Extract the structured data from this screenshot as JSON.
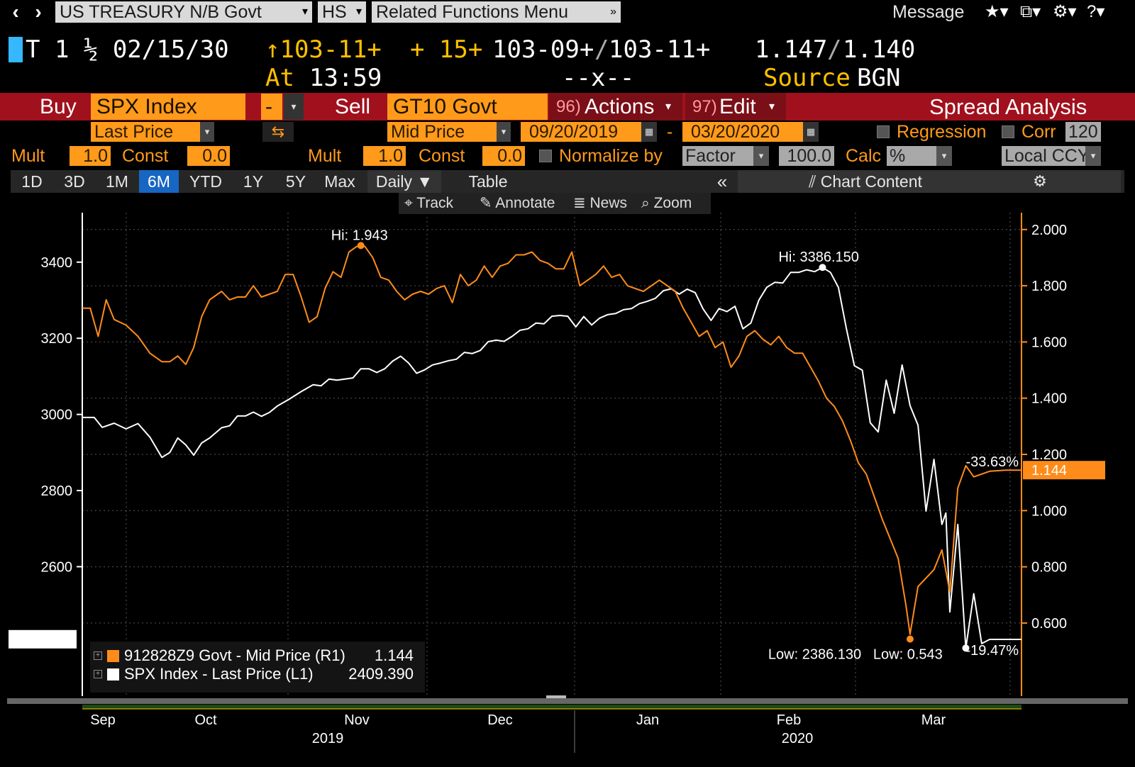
{
  "topbar": {
    "security": "US TREASURY N/B Govt",
    "function": "HS",
    "related": "Related Functions  Menu",
    "message": "Message"
  },
  "security_line": {
    "ticker": "T 1 ½ 02/15/30",
    "last_price": "↑103-11+",
    "change": "+ 15+",
    "bid": "103-09+",
    "ask": "103-11+",
    "yield_bid": "1.147",
    "yield_ask": "1.140",
    "at_label": "At",
    "time": "13:59",
    "size": "--x--",
    "source_label": "Source",
    "source": "BGN"
  },
  "spread_bar": {
    "buy_label": "Buy",
    "buy_security": "SPX Index",
    "op": "-",
    "sell_label": "Sell",
    "sell_security": "GT10 Govt",
    "actions_num": "96)",
    "actions": "Actions",
    "edit_num": "97)",
    "edit": "Edit",
    "title": "Spread Analysis"
  },
  "fields": {
    "buy_field": "Last Price",
    "sell_field": "Mid Price",
    "start_date": "09/20/2019",
    "end_date": "03/20/2020",
    "regression": "Regression",
    "corr": "Corr",
    "corr_value": "120",
    "mult_label": "Mult",
    "const_label": "Const",
    "mult1": "1.0",
    "const1": "0.0",
    "mult2": "1.0",
    "const2": "0.0",
    "normalize": "Normalize by",
    "normalize_mode": "Factor",
    "normalize_value": "100.0",
    "calc": "Calc",
    "calc_value": "%",
    "ccy": "Local CCY"
  },
  "tabs": [
    "1D",
    "3D",
    "1M",
    "6M",
    "YTD",
    "1Y",
    "5Y",
    "Max"
  ],
  "tabs_active": "6M",
  "frequency": "Daily",
  "table_label": "Table",
  "chart_content": "Chart Content",
  "tools": {
    "track": "Track",
    "annotate": "Annotate",
    "news": "News",
    "zoom": "Zoom"
  },
  "colors": {
    "orange": "#ff8c1a",
    "white": "#ffffff",
    "red_bar": "#a0111d",
    "tab_active": "#1766c2"
  },
  "legend": [
    {
      "name": "912828Z9 Govt - Mid Price (R1)",
      "value": "1.144",
      "color": "#ff8c1a"
    },
    {
      "name": "SPX Index - Last Price (L1)",
      "value": "2409.390",
      "color": "#ffffff"
    }
  ],
  "chart_data": {
    "type": "line",
    "x_labels": [
      "Sep",
      "Oct",
      "Nov",
      "Dec",
      "Jan",
      "Feb",
      "Mar"
    ],
    "x_years": [
      "2019",
      "2020"
    ],
    "left_axis": {
      "ticks": [
        "3400",
        "3200",
        "3000",
        "2800",
        "2600"
      ],
      "ylim": [
        2260,
        3530
      ]
    },
    "right_axis": {
      "ticks": [
        "2.000",
        "1.800",
        "1.600",
        "1.400",
        "1.200",
        "1.000",
        "0.800",
        "0.600"
      ],
      "ylim": [
        0.34,
        2.06
      ]
    },
    "annotations": {
      "spx_hi": "Hi: 3386.150",
      "spx_low": "Low: 2386.130",
      "yield_hi": "Hi: 1.943",
      "yield_low": "Low: 0.543",
      "yield_change": "-33.63%",
      "spx_change": "-19.47%",
      "yield_last": "1.144",
      "spx_last": "2409.390"
    },
    "series": [
      {
        "name": "SPX Index - Last Price (L1)",
        "axis": "left",
        "color": "#ffffff",
        "values": [
          [
            0,
            2992
          ],
          [
            3,
            2992
          ],
          [
            5,
            2966
          ],
          [
            8,
            2977
          ],
          [
            11,
            2962
          ],
          [
            14,
            2976
          ],
          [
            17,
            2940
          ],
          [
            20,
            2887
          ],
          [
            22,
            2900
          ],
          [
            24,
            2938
          ],
          [
            26,
            2920
          ],
          [
            28,
            2893
          ],
          [
            30,
            2925
          ],
          [
            32,
            2938
          ],
          [
            35,
            2965
          ],
          [
            37,
            2970
          ],
          [
            39,
            2996
          ],
          [
            41,
            2996
          ],
          [
            43,
            3006
          ],
          [
            45,
            2995
          ],
          [
            47,
            3005
          ],
          [
            49,
            3022
          ],
          [
            52,
            3040
          ],
          [
            55,
            3060
          ],
          [
            58,
            3078
          ],
          [
            60,
            3075
          ],
          [
            62,
            3093
          ],
          [
            64,
            3090
          ],
          [
            66,
            3093
          ],
          [
            68,
            3096
          ],
          [
            70,
            3120
          ],
          [
            72,
            3120
          ],
          [
            74,
            3110
          ],
          [
            76,
            3120
          ],
          [
            78,
            3140
          ],
          [
            80,
            3153
          ],
          [
            82,
            3135
          ],
          [
            84,
            3108
          ],
          [
            86,
            3117
          ],
          [
            88,
            3130
          ],
          [
            90,
            3135
          ],
          [
            92,
            3141
          ],
          [
            94,
            3145
          ],
          [
            96,
            3163
          ],
          [
            98,
            3160
          ],
          [
            100,
            3168
          ],
          [
            102,
            3191
          ],
          [
            104,
            3195
          ],
          [
            106,
            3192
          ],
          [
            108,
            3205
          ],
          [
            110,
            3221
          ],
          [
            112,
            3225
          ],
          [
            114,
            3240
          ],
          [
            116,
            3238
          ],
          [
            118,
            3258
          ],
          [
            120,
            3260
          ],
          [
            122,
            3258
          ],
          [
            124,
            3230
          ],
          [
            126,
            3257
          ],
          [
            128,
            3235
          ],
          [
            130,
            3253
          ],
          [
            132,
            3262
          ],
          [
            134,
            3265
          ],
          [
            136,
            3275
          ],
          [
            138,
            3278
          ],
          [
            140,
            3291
          ],
          [
            142,
            3297
          ],
          [
            144,
            3305
          ],
          [
            146,
            3325
          ],
          [
            148,
            3330
          ],
          [
            150,
            3316
          ],
          [
            152,
            3329
          ],
          [
            154,
            3320
          ],
          [
            156,
            3277
          ],
          [
            158,
            3247
          ],
          [
            160,
            3278
          ],
          [
            162,
            3270
          ],
          [
            164,
            3284
          ],
          [
            166,
            3225
          ],
          [
            168,
            3240
          ],
          [
            170,
            3300
          ],
          [
            172,
            3334
          ],
          [
            174,
            3347
          ],
          [
            176,
            3345
          ],
          [
            178,
            3373
          ],
          [
            180,
            3373
          ],
          [
            182,
            3380
          ],
          [
            184,
            3375
          ],
          [
            186,
            3386
          ],
          [
            188,
            3373
          ],
          [
            190,
            3334
          ],
          [
            192,
            3225
          ],
          [
            194,
            3128
          ],
          [
            196,
            3116
          ],
          [
            198,
            2978
          ],
          [
            200,
            2954
          ],
          [
            202,
            3090
          ],
          [
            204,
            3003
          ],
          [
            206,
            3130
          ],
          [
            208,
            3023
          ],
          [
            210,
            2972
          ],
          [
            212,
            2746
          ],
          [
            214,
            2882
          ],
          [
            216,
            2711
          ],
          [
            217,
            2741
          ],
          [
            218,
            2481
          ],
          [
            220,
            2711
          ],
          [
            222,
            2386
          ],
          [
            224,
            2529
          ],
          [
            226,
            2398
          ],
          [
            228,
            2409
          ],
          [
            232,
            2409
          ],
          [
            236,
            2409
          ]
        ]
      },
      {
        "name": "912828Z9 Govt - Mid Price (R1)",
        "axis": "right",
        "color": "#ff8c1a",
        "values": [
          [
            0,
            1.72
          ],
          [
            2,
            1.72
          ],
          [
            4,
            1.62
          ],
          [
            6,
            1.75
          ],
          [
            8,
            1.68
          ],
          [
            11,
            1.66
          ],
          [
            14,
            1.62
          ],
          [
            17,
            1.56
          ],
          [
            20,
            1.53
          ],
          [
            22,
            1.53
          ],
          [
            24,
            1.55
          ],
          [
            26,
            1.52
          ],
          [
            28,
            1.58
          ],
          [
            30,
            1.69
          ],
          [
            32,
            1.75
          ],
          [
            35,
            1.78
          ],
          [
            37,
            1.75
          ],
          [
            39,
            1.76
          ],
          [
            41,
            1.76
          ],
          [
            43,
            1.8
          ],
          [
            45,
            1.76
          ],
          [
            47,
            1.77
          ],
          [
            49,
            1.78
          ],
          [
            51,
            1.84
          ],
          [
            53,
            1.84
          ],
          [
            55,
            1.76
          ],
          [
            57,
            1.67
          ],
          [
            59,
            1.69
          ],
          [
            61,
            1.79
          ],
          [
            63,
            1.85
          ],
          [
            65,
            1.83
          ],
          [
            67,
            1.92
          ],
          [
            69,
            1.94
          ],
          [
            71,
            1.94
          ],
          [
            73,
            1.9
          ],
          [
            75,
            1.83
          ],
          [
            77,
            1.82
          ],
          [
            79,
            1.78
          ],
          [
            81,
            1.75
          ],
          [
            83,
            1.77
          ],
          [
            85,
            1.78
          ],
          [
            87,
            1.77
          ],
          [
            89,
            1.79
          ],
          [
            91,
            1.8
          ],
          [
            93,
            1.74
          ],
          [
            95,
            1.84
          ],
          [
            97,
            1.8
          ],
          [
            99,
            1.82
          ],
          [
            101,
            1.87
          ],
          [
            103,
            1.83
          ],
          [
            105,
            1.87
          ],
          [
            107,
            1.88
          ],
          [
            109,
            1.91
          ],
          [
            111,
            1.91
          ],
          [
            113,
            1.92
          ],
          [
            115,
            1.89
          ],
          [
            117,
            1.88
          ],
          [
            119,
            1.86
          ],
          [
            121,
            1.86
          ],
          [
            123,
            1.92
          ],
          [
            125,
            1.8
          ],
          [
            127,
            1.82
          ],
          [
            129,
            1.84
          ],
          [
            131,
            1.87
          ],
          [
            133,
            1.83
          ],
          [
            135,
            1.84
          ],
          [
            137,
            1.8
          ],
          [
            139,
            1.79
          ],
          [
            141,
            1.78
          ],
          [
            143,
            1.8
          ],
          [
            145,
            1.82
          ],
          [
            147,
            1.8
          ],
          [
            149,
            1.78
          ],
          [
            151,
            1.72
          ],
          [
            153,
            1.67
          ],
          [
            155,
            1.62
          ],
          [
            157,
            1.64
          ],
          [
            159,
            1.58
          ],
          [
            161,
            1.6
          ],
          [
            163,
            1.51
          ],
          [
            165,
            1.55
          ],
          [
            167,
            1.62
          ],
          [
            169,
            1.64
          ],
          [
            171,
            1.61
          ],
          [
            173,
            1.59
          ],
          [
            175,
            1.62
          ],
          [
            177,
            1.58
          ],
          [
            179,
            1.56
          ],
          [
            181,
            1.56
          ],
          [
            183,
            1.51
          ],
          [
            185,
            1.46
          ],
          [
            187,
            1.4
          ],
          [
            189,
            1.37
          ],
          [
            191,
            1.32
          ],
          [
            193,
            1.25
          ],
          [
            195,
            1.17
          ],
          [
            197,
            1.13
          ],
          [
            199,
            1.05
          ],
          [
            201,
            0.97
          ],
          [
            203,
            0.9
          ],
          [
            205,
            0.83
          ],
          [
            207,
            0.66
          ],
          [
            208,
            0.56
          ],
          [
            210,
            0.73
          ],
          [
            212,
            0.76
          ],
          [
            214,
            0.79
          ],
          [
            216,
            0.86
          ],
          [
            218,
            0.71
          ],
          [
            220,
            1.08
          ],
          [
            222,
            1.16
          ],
          [
            224,
            1.12
          ],
          [
            228,
            1.14
          ],
          [
            232,
            1.144
          ],
          [
            236,
            1.144
          ]
        ]
      }
    ]
  }
}
